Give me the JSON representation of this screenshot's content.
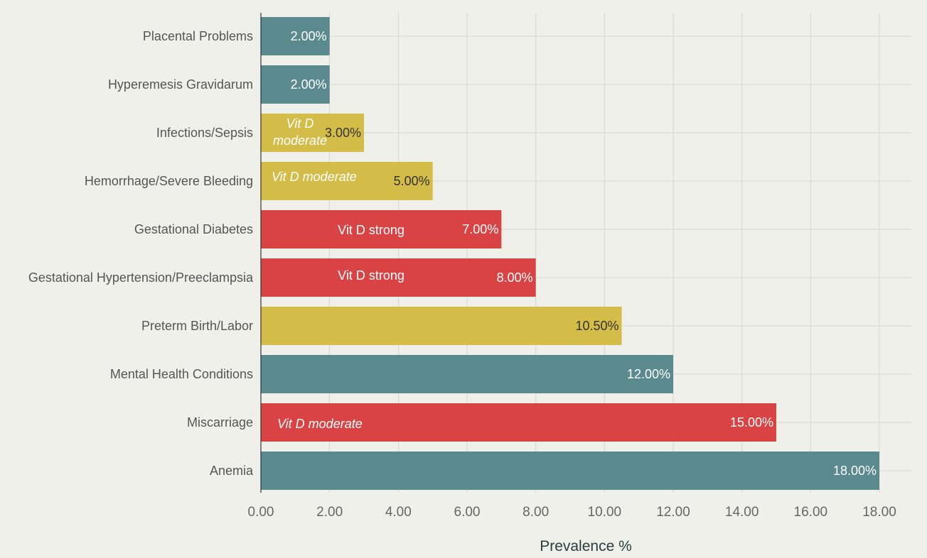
{
  "chart_data": {
    "type": "bar",
    "orientation": "horizontal",
    "categories": [
      "Placental Problems",
      "Hyperemesis Gravidarum",
      "Infections/Sepsis",
      "Hemorrhage/Severe Bleeding",
      "Gestational Diabetes",
      "Gestational Hypertension/Preeclampsia",
      "Preterm Birth/Labor",
      "Mental Health Conditions",
      "Miscarriage",
      "Anemia"
    ],
    "values": [
      2.0,
      2.0,
      3.0,
      5.0,
      7.0,
      8.0,
      10.5,
      12.0,
      15.0,
      18.0
    ],
    "data_labels": [
      "2.00%",
      "2.00%",
      "3.00%",
      "5.00%",
      "7.00%",
      "8.00%",
      "10.50%",
      "12.00%",
      "15.00%",
      "18.00%"
    ],
    "bar_colors": [
      "#5b8a8e",
      "#5b8a8e",
      "#d4bc48",
      "#d4bc48",
      "#d94343",
      "#d94343",
      "#d4bc48",
      "#5b8a8e",
      "#d94343",
      "#5b8a8e"
    ],
    "label_colors": [
      "#ffffff",
      "#ffffff",
      "#333333",
      "#333333",
      "#ffffff",
      "#ffffff",
      "#333333",
      "#ffffff",
      "#ffffff",
      "#ffffff"
    ],
    "annotations": [
      {
        "category_index": 2,
        "lines": [
          "Vit D",
          "moderate"
        ],
        "italic": true
      },
      {
        "category_index": 3,
        "lines": [
          "Vit D moderate"
        ],
        "italic": true
      },
      {
        "category_index": 4,
        "lines": [
          "Vit D strong"
        ],
        "italic": false
      },
      {
        "category_index": 5,
        "lines": [
          "Vit D strong"
        ],
        "italic": false
      },
      {
        "category_index": 8,
        "lines": [
          "Vit D moderate"
        ],
        "italic": true
      }
    ],
    "xlabel": "Prevalence %",
    "ylabel": "",
    "xlim": [
      0,
      18
    ],
    "xticks": [
      0,
      2,
      4,
      6,
      8,
      10,
      12,
      14,
      16,
      18
    ],
    "xtick_labels": [
      "0.00",
      "2.00",
      "4.00",
      "6.00",
      "8.00",
      "10.00",
      "12.00",
      "14.00",
      "16.00",
      "18.00"
    ],
    "grid": true,
    "background": "#f0f0eb"
  }
}
